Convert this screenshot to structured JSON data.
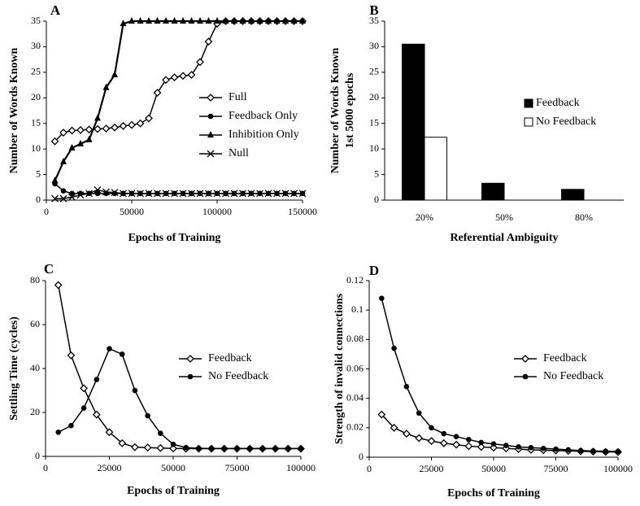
{
  "chart_data": [
    {
      "type": "line",
      "panel_label": "A",
      "x_label": "Epochs of Training",
      "y_label": "Number of Words Known",
      "x": [
        5000,
        10000,
        15000,
        20000,
        25000,
        30000,
        35000,
        40000,
        45000,
        50000,
        55000,
        60000,
        65000,
        70000,
        75000,
        80000,
        85000,
        90000,
        95000,
        100000,
        105000,
        110000,
        115000,
        120000,
        125000,
        130000,
        135000,
        140000,
        145000,
        150000
      ],
      "series": [
        {
          "name": "Full",
          "color": "#000000",
          "marker": "diamond-open",
          "values": [
            11.5,
            13.2,
            13.6,
            13.7,
            13.8,
            13.9,
            14.0,
            14.2,
            14.5,
            14.7,
            15.0,
            16.0,
            21.0,
            23.5,
            24.0,
            24.3,
            24.5,
            27.0,
            31.0,
            34.5,
            35,
            35,
            35,
            35,
            35,
            35,
            35,
            35,
            35,
            35
          ]
        },
        {
          "name": "Feedback Only",
          "color": "#000000",
          "marker": "circle",
          "values": [
            3.2,
            1.8,
            1.3,
            1.3,
            1.3,
            1.3,
            1.3,
            1.3,
            1.3,
            1.3,
            1.3,
            1.3,
            1.3,
            1.3,
            1.3,
            1.3,
            1.3,
            1.3,
            1.3,
            1.3,
            1.3,
            1.3,
            1.3,
            1.3,
            1.3,
            1.3,
            1.3,
            1.3,
            1.3,
            1.3
          ]
        },
        {
          "name": "Inhibition Only",
          "color": "#000000",
          "marker": "triangle",
          "values": [
            3.8,
            7.5,
            10.2,
            11.0,
            11.8,
            16.0,
            22.0,
            24.5,
            34.5,
            35,
            35,
            35,
            35,
            35,
            35,
            35,
            35,
            35,
            35,
            35,
            35,
            35,
            35,
            35,
            35,
            35,
            35,
            35,
            35,
            35
          ]
        },
        {
          "name": "Null",
          "color": "#000000",
          "marker": "cross",
          "values": [
            0.3,
            0.3,
            0.6,
            1.0,
            1.3,
            2.0,
            1.6,
            1.5,
            1.3,
            1.3,
            1.3,
            1.3,
            1.3,
            1.3,
            1.3,
            1.3,
            1.3,
            1.3,
            1.3,
            1.3,
            1.3,
            1.3,
            1.3,
            1.3,
            1.3,
            1.3,
            1.3,
            1.3,
            1.3,
            1.3
          ]
        }
      ],
      "xlim": [
        0,
        150000
      ],
      "xticks": [
        0,
        50000,
        100000,
        150000
      ],
      "ylim": [
        0,
        35
      ],
      "yticks": [
        0,
        5,
        10,
        15,
        20,
        25,
        30,
        35
      ],
      "legend": "right"
    },
    {
      "type": "bar",
      "panel_label": "B",
      "x_label": "Referential Ambiguity",
      "y_label": [
        "Number of Words Known",
        "1st 5000 epochs"
      ],
      "categories": [
        "20%",
        "50%",
        "80%"
      ],
      "series": [
        {
          "name": "Feedback",
          "color": "#000000",
          "values": [
            30.5,
            3.3,
            2.1
          ]
        },
        {
          "name": "No Feedback",
          "color": "#ffffff",
          "values": [
            12.3,
            0,
            0
          ]
        }
      ],
      "ylim": [
        0,
        35
      ],
      "yticks": [
        0,
        5,
        10,
        15,
        20,
        25,
        30,
        35
      ],
      "legend": "right"
    },
    {
      "type": "line",
      "panel_label": "C",
      "x_label": "Epochs of Training",
      "y_label": "Settling Time (cycles)",
      "x": [
        5000,
        10000,
        15000,
        20000,
        25000,
        30000,
        35000,
        40000,
        45000,
        50000,
        55000,
        60000,
        65000,
        70000,
        75000,
        80000,
        85000,
        90000,
        95000,
        100000
      ],
      "series": [
        {
          "name": "Feedback",
          "color": "#000000",
          "marker": "diamond-open",
          "values": [
            78,
            46,
            31,
            19,
            11,
            6,
            4.2,
            4,
            3.8,
            3.6,
            3.5,
            3.5,
            3.5,
            3.5,
            3.5,
            3.5,
            3.5,
            3.5,
            3.5,
            3.5
          ]
        },
        {
          "name": "No Feedback",
          "color": "#000000",
          "marker": "circle",
          "values": [
            11,
            14,
            22,
            35,
            49,
            46.5,
            30,
            18.5,
            10.5,
            5.5,
            4,
            3.7,
            3.6,
            3.6,
            3.6,
            3.6,
            3.6,
            3.6,
            3.6,
            3.6
          ]
        }
      ],
      "xlim": [
        0,
        100000
      ],
      "xticks": [
        0,
        25000,
        50000,
        75000,
        100000
      ],
      "ylim": [
        0,
        80
      ],
      "yticks": [
        0,
        20,
        40,
        60,
        80
      ],
      "legend": "right"
    },
    {
      "type": "line",
      "panel_label": "D",
      "x_label": "Epochs of Training",
      "y_label": "Strength of invalid connections",
      "x": [
        5000,
        10000,
        15000,
        20000,
        25000,
        30000,
        35000,
        40000,
        45000,
        50000,
        55000,
        60000,
        65000,
        70000,
        75000,
        80000,
        85000,
        90000,
        95000,
        100000
      ],
      "series": [
        {
          "name": "Feedback",
          "color": "#000000",
          "marker": "diamond-open",
          "values": [
            0.029,
            0.02,
            0.016,
            0.013,
            0.011,
            0.0095,
            0.0085,
            0.0075,
            0.007,
            0.0065,
            0.006,
            0.0055,
            0.005,
            0.0048,
            0.0045,
            0.0043,
            0.004,
            0.0038,
            0.0036,
            0.0035
          ]
        },
        {
          "name": "No Feedback",
          "color": "#000000",
          "marker": "circle",
          "values": [
            0.108,
            0.074,
            0.048,
            0.03,
            0.02,
            0.016,
            0.014,
            0.012,
            0.01,
            0.009,
            0.008,
            0.007,
            0.0065,
            0.006,
            0.0055,
            0.005,
            0.0045,
            0.0042,
            0.004,
            0.004
          ]
        }
      ],
      "xlim": [
        0,
        100000
      ],
      "xticks": [
        0,
        25000,
        50000,
        75000,
        100000
      ],
      "ylim": [
        0,
        0.12
      ],
      "yticks": [
        0,
        0.02,
        0.04,
        0.06,
        0.08,
        0.1,
        0.12
      ],
      "legend": "right"
    }
  ]
}
